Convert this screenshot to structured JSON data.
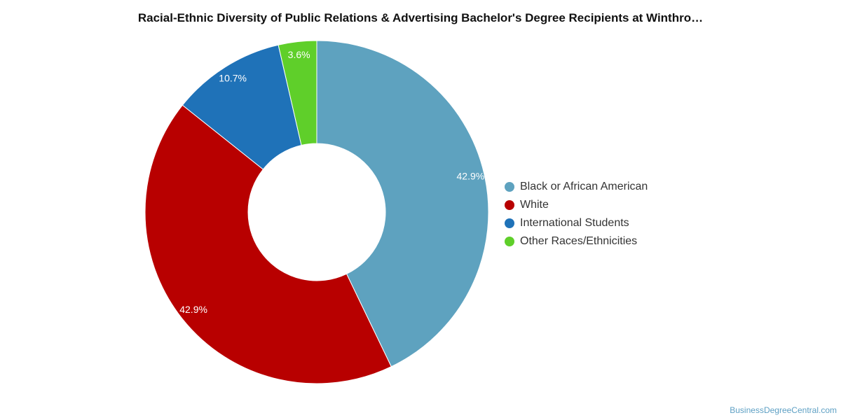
{
  "chart_data": {
    "type": "pie",
    "title": "Racial-Ethnic Diversity of Public Relations & Advertising Bachelor's Degree Recipients at Winthro…",
    "slices": [
      {
        "label": "Black or African American",
        "value": 42.9,
        "display": "42.9%",
        "color": "#5ea2bf"
      },
      {
        "label": "White",
        "value": 42.9,
        "display": "42.9%",
        "color": "#b80000"
      },
      {
        "label": "International Students",
        "value": 10.7,
        "display": "10.7%",
        "color": "#1f72b8"
      },
      {
        "label": "Other Races/Ethnicities",
        "value": 3.6,
        "display": "3.6%",
        "color": "#5fcf2a"
      }
    ],
    "legend_position": "right"
  },
  "footer": {
    "source": "BusinessDegreeCentral.com"
  }
}
